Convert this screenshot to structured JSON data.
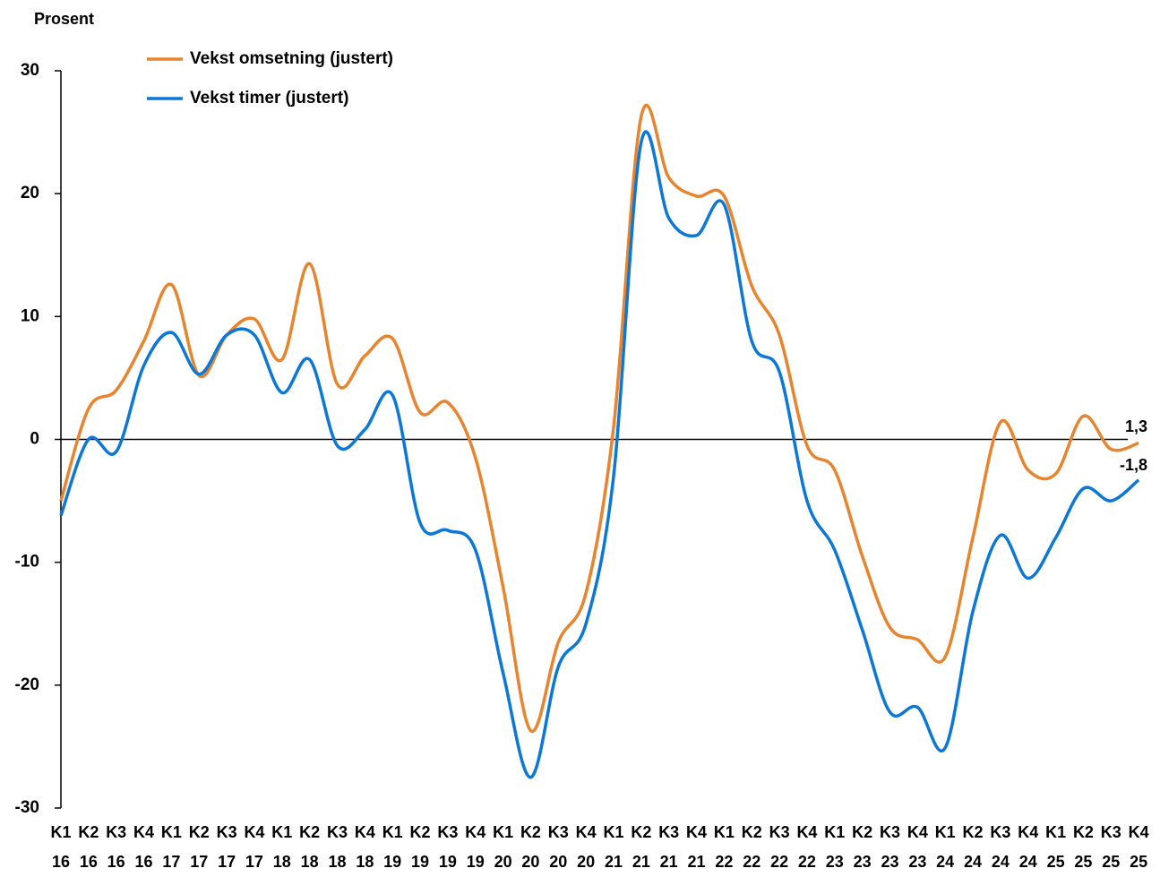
{
  "chart_data": {
    "type": "line",
    "ylabel": "Prosent",
    "categories": [
      [
        "K1",
        "16"
      ],
      [
        "K2",
        "16"
      ],
      [
        "K3",
        "16"
      ],
      [
        "K4",
        "16"
      ],
      [
        "K1",
        "17"
      ],
      [
        "K2",
        "17"
      ],
      [
        "K3",
        "17"
      ],
      [
        "K4",
        "17"
      ],
      [
        "K1",
        "18"
      ],
      [
        "K2",
        "18"
      ],
      [
        "K3",
        "18"
      ],
      [
        "K4",
        "18"
      ],
      [
        "K1",
        "19"
      ],
      [
        "K2",
        "19"
      ],
      [
        "K3",
        "19"
      ],
      [
        "K4",
        "19"
      ],
      [
        "K1",
        "20"
      ],
      [
        "K2",
        "20"
      ],
      [
        "K3",
        "20"
      ],
      [
        "K4",
        "20"
      ],
      [
        "K1",
        "21"
      ],
      [
        "K2",
        "21"
      ],
      [
        "K3",
        "21"
      ],
      [
        "K4",
        "21"
      ],
      [
        "K1",
        "22"
      ],
      [
        "K2",
        "22"
      ],
      [
        "K3",
        "22"
      ],
      [
        "K4",
        "22"
      ],
      [
        "K1",
        "23"
      ],
      [
        "K2",
        "23"
      ],
      [
        "K3",
        "23"
      ],
      [
        "K4",
        "23"
      ],
      [
        "K1",
        "24"
      ],
      [
        "K2",
        "24"
      ],
      [
        "K3",
        "24"
      ],
      [
        "K4",
        "24"
      ],
      [
        "K1",
        "25"
      ],
      [
        "K2",
        "25"
      ],
      [
        "K3",
        "25"
      ],
      [
        "K4",
        "25"
      ]
    ],
    "series": [
      {
        "name": "Vekst omsetning (justert)",
        "color": "#e8842e",
        "values": [
          -5,
          2.5,
          4,
          8,
          12.6,
          5.2,
          8.5,
          9.8,
          6.5,
          14.3,
          4.5,
          6.8,
          8.2,
          2.2,
          3,
          -1.5,
          -12,
          -23.7,
          -16.5,
          -12.5,
          1,
          26.3,
          21.3,
          19.8,
          19.8,
          12.5,
          8.5,
          -0.5,
          -2.5,
          -9.5,
          -15.3,
          -16.3,
          -17.7,
          -8,
          1.4,
          -2.5,
          -2.8,
          1.9,
          -0.8,
          -0.3
        ]
      },
      {
        "name": "Vekst timer (justert)",
        "color": "#0b77d6",
        "values": [
          -6.2,
          0,
          -1,
          6,
          8.7,
          5.3,
          8.5,
          8.5,
          3.8,
          6.5,
          -0.5,
          0.8,
          3.6,
          -6.8,
          -7.4,
          -9,
          -19,
          -27.5,
          -18.5,
          -15,
          -3,
          24.2,
          18,
          16.6,
          19.1,
          8,
          5.5,
          -5,
          -9,
          -15.5,
          -22.2,
          -21.8,
          -25.1,
          -14,
          -7.8,
          -11.3,
          -8,
          -4,
          -5,
          -3.3
        ]
      }
    ],
    "annotations": [
      "1,3",
      "-1,8"
    ],
    "ylim": [
      -30,
      30
    ],
    "yticks": [
      -30,
      -20,
      -10,
      0,
      10,
      20,
      30
    ]
  }
}
